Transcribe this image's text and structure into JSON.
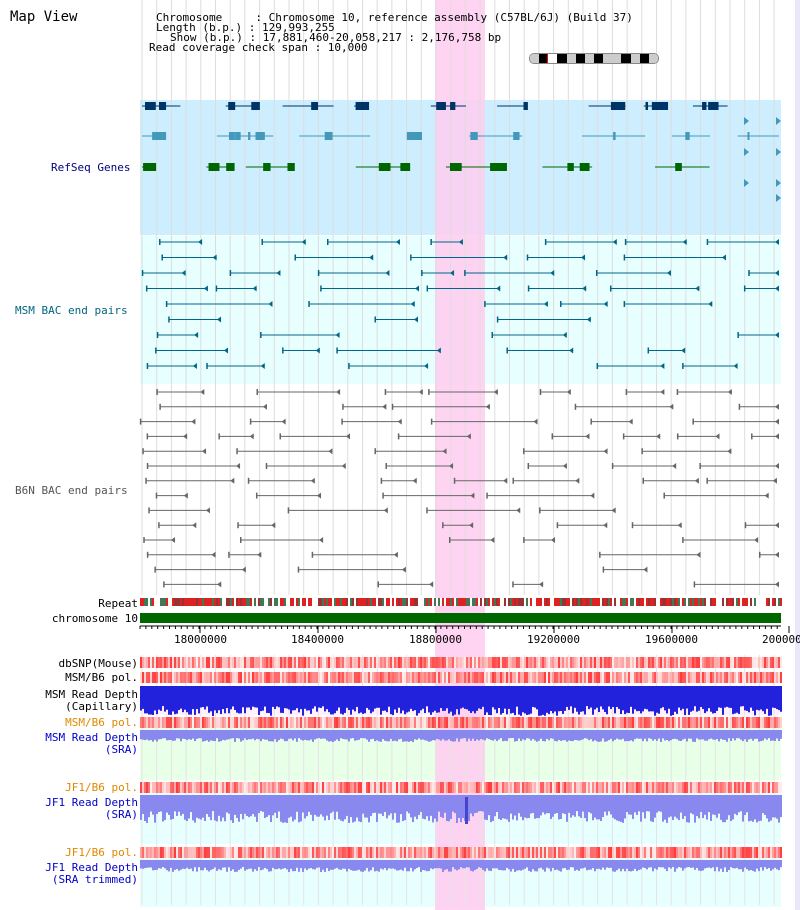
{
  "view": {
    "title": "Map View"
  },
  "info": {
    "chromosome": "Chromosome     : Chromosome 10, reference assembly (C57BL/6J) (Build 37)",
    "length": "Length (b.p.) : 129,993,255",
    "show": "Show (b.p.) : 17,881,460-20,058,217 : 2,176,758 bp",
    "coverage": "Read coverage check span : 10,000"
  },
  "tracks": {
    "refseq": "RefSeq Genes",
    "msm_bac": "MSM BAC end pairs",
    "b6n_bac": "B6N BAC end pairs",
    "repeat": "Repeat",
    "chromosome": "chromosome 10",
    "dbsnp": "dbSNP(Mouse)",
    "msm_b6_pol_1": "MSM/B6 pol.",
    "msm_read_depth_cap_1": "MSM Read Depth",
    "msm_read_depth_cap_2": "(Capillary)",
    "msm_b6_pol_2": "MSM/B6 pol.",
    "msm_read_depth_sra_1": "MSM Read Depth",
    "msm_read_depth_sra_2": "(SRA)",
    "jf1_b6_pol_1": "JF1/B6 pol.",
    "jf1_read_depth_sra_1": "JF1 Read Depth",
    "jf1_read_depth_sra_2": "(SRA)",
    "jf1_b6_pol_2": "JF1/B6 pol.",
    "jf1_read_depth_trim_1": "JF1 Read Depth",
    "jf1_read_depth_trim_2": "(SRA trimmed)"
  },
  "axis": {
    "ticks": [
      "18000000",
      "18400000",
      "18800000",
      "19200000",
      "19600000",
      "200000"
    ]
  },
  "colors": {
    "refseq_bg": "#cceeff",
    "msm_bg": "#e8ffff",
    "b6n_bg": "#ffffff",
    "highlight": "#ffccf0",
    "chromosome_bar": "#006600",
    "depth_blue": "#2222dd",
    "depth_light": "#8888ee"
  }
}
